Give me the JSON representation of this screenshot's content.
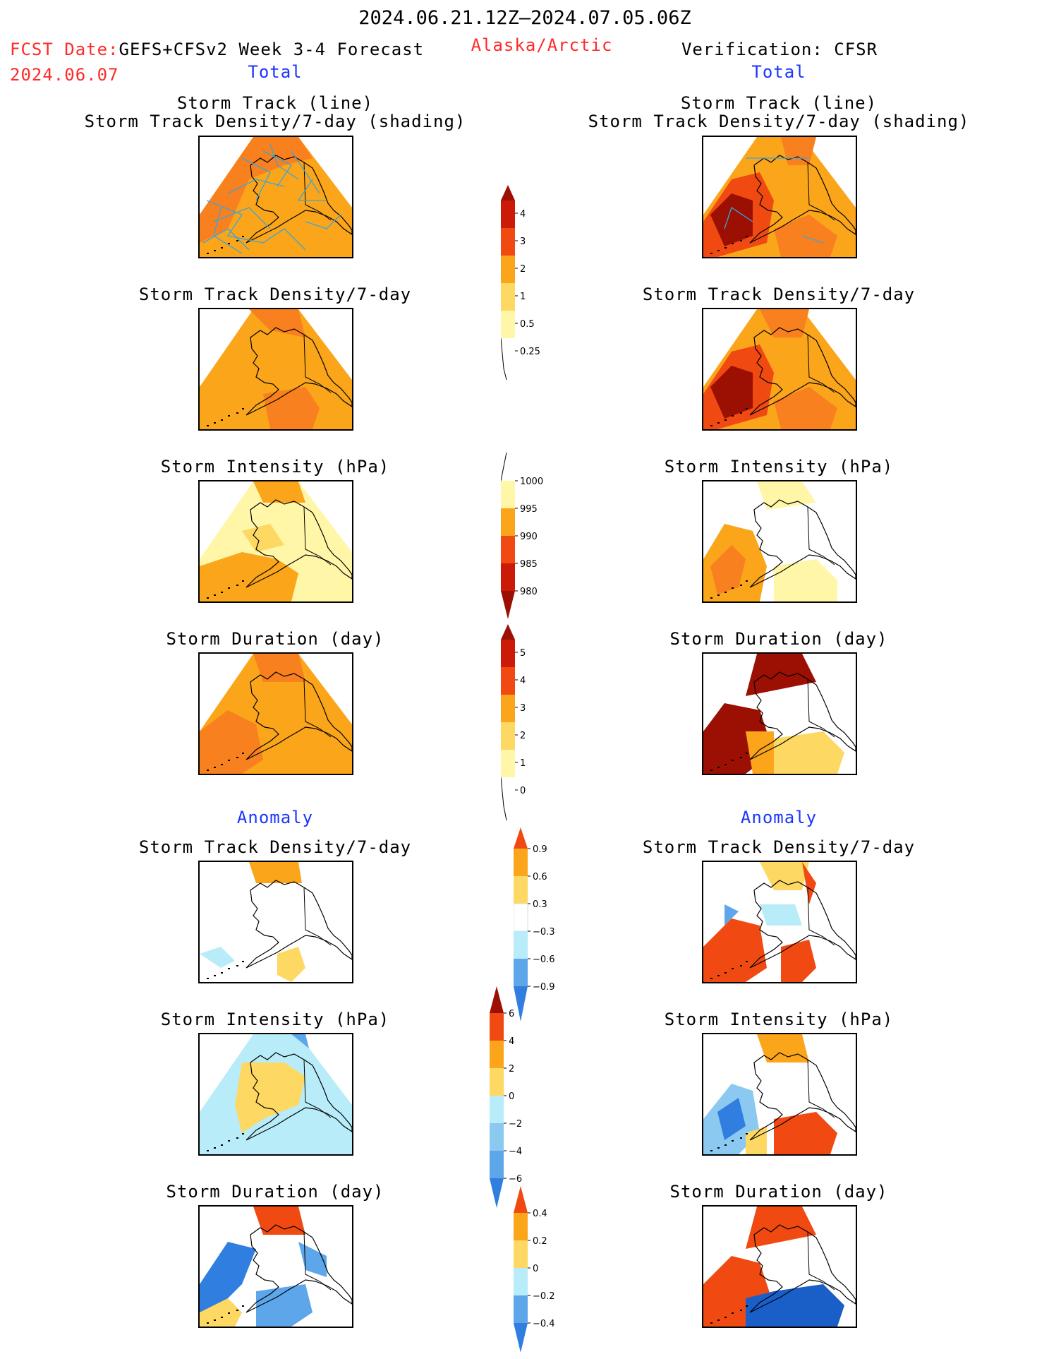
{
  "header": {
    "date_range": "2024.06.21.12Z–2024.07.05.06Z",
    "fcst_label": "FCST Date:",
    "model": "GEFS+CFSv2 Week 3-4 Forecast",
    "region": "Alaska/Arctic",
    "fcst_date": "2024.06.07",
    "verification": "Verification: CFSR",
    "left_total": "Total",
    "right_total": "Total"
  },
  "sections": {
    "anomaly_left": "Anomaly",
    "anomaly_right": "Anomaly"
  },
  "panel_titles": {
    "track_line": "Storm Track (line)",
    "track_shading": "Storm Track Density/7-day (shading)",
    "track_density": "Storm Track Density/7-day",
    "intensity": "Storm Intensity (hPa)",
    "duration": "Storm Duration (day)"
  },
  "colorbars": {
    "density": [
      "4",
      "3",
      "2",
      "1",
      "0.5",
      "0.25"
    ],
    "intensity": [
      "1000",
      "995",
      "990",
      "985",
      "980"
    ],
    "duration": [
      "5",
      "4",
      "3",
      "2",
      "1",
      "0"
    ],
    "density_anom": [
      "0.9",
      "0.6",
      "0.3",
      "−0.3",
      "−0.6",
      "−0.9"
    ],
    "intensity_anom": [
      "6",
      "4",
      "2",
      "0",
      "−2",
      "−4",
      "−6"
    ],
    "duration_anom": [
      "0.4",
      "0.2",
      "0",
      "−0.2",
      "−0.4"
    ]
  },
  "colors": {
    "warm": [
      "#fff6a8",
      "#fdd862",
      "#fba51a",
      "#f8801e",
      "#f04a12",
      "#cc1a08",
      "#9c0f03"
    ],
    "cool": [
      "#ffffff",
      "#b8ecf8",
      "#8cc9f0",
      "#5da6ea",
      "#2f7ee0",
      "#1a5fc8"
    ],
    "title_red": "#ff2a2a",
    "title_blue": "#1a35ff"
  }
}
